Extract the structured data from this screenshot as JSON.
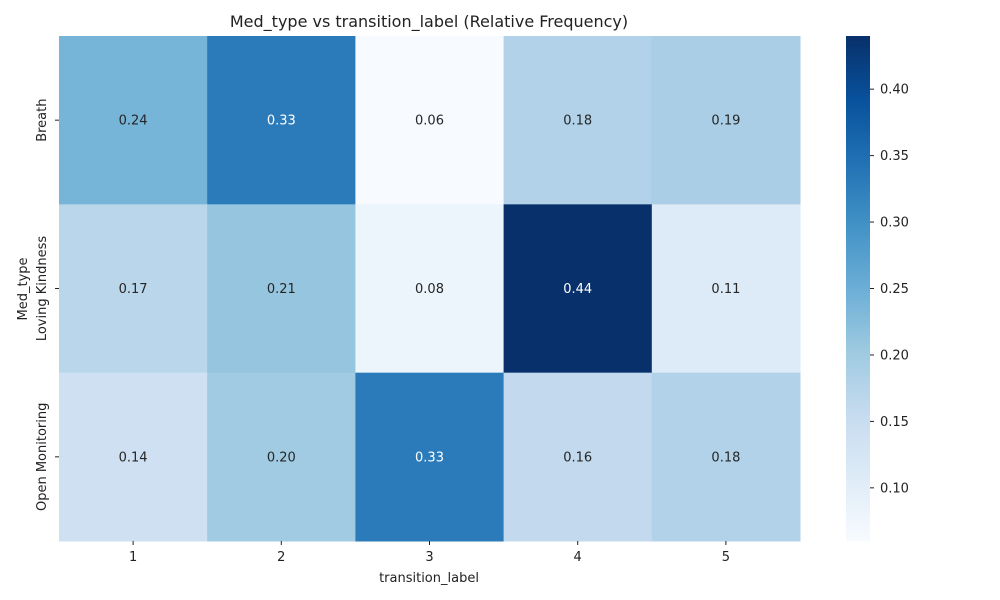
{
  "chart_data": {
    "type": "heatmap",
    "title": "Med_type vs transition_label (Relative Frequency)",
    "xlabel": "transition_label",
    "ylabel": "Med_type",
    "x_categories": [
      "1",
      "2",
      "3",
      "4",
      "5"
    ],
    "y_categories": [
      "Breath",
      "Loving Kindness",
      "Open Monitoring"
    ],
    "values": [
      [
        0.24,
        0.33,
        0.06,
        0.18,
        0.19
      ],
      [
        0.17,
        0.21,
        0.08,
        0.44,
        0.11
      ],
      [
        0.14,
        0.2,
        0.33,
        0.16,
        0.18
      ]
    ],
    "value_labels": [
      [
        "0.24",
        "0.33",
        "0.06",
        "0.18",
        "0.19"
      ],
      [
        "0.17",
        "0.21",
        "0.08",
        "0.44",
        "0.11"
      ],
      [
        "0.14",
        "0.20",
        "0.33",
        "0.16",
        "0.18"
      ]
    ],
    "colormap": "Blues",
    "color_range": [
      0.06,
      0.44
    ],
    "colorbar": {
      "ticks": [
        0.1,
        0.15,
        0.2,
        0.25,
        0.3,
        0.35,
        0.4
      ],
      "tick_labels": [
        "0.10",
        "0.15",
        "0.20",
        "0.25",
        "0.30",
        "0.35",
        "0.40"
      ]
    },
    "grid": false
  }
}
